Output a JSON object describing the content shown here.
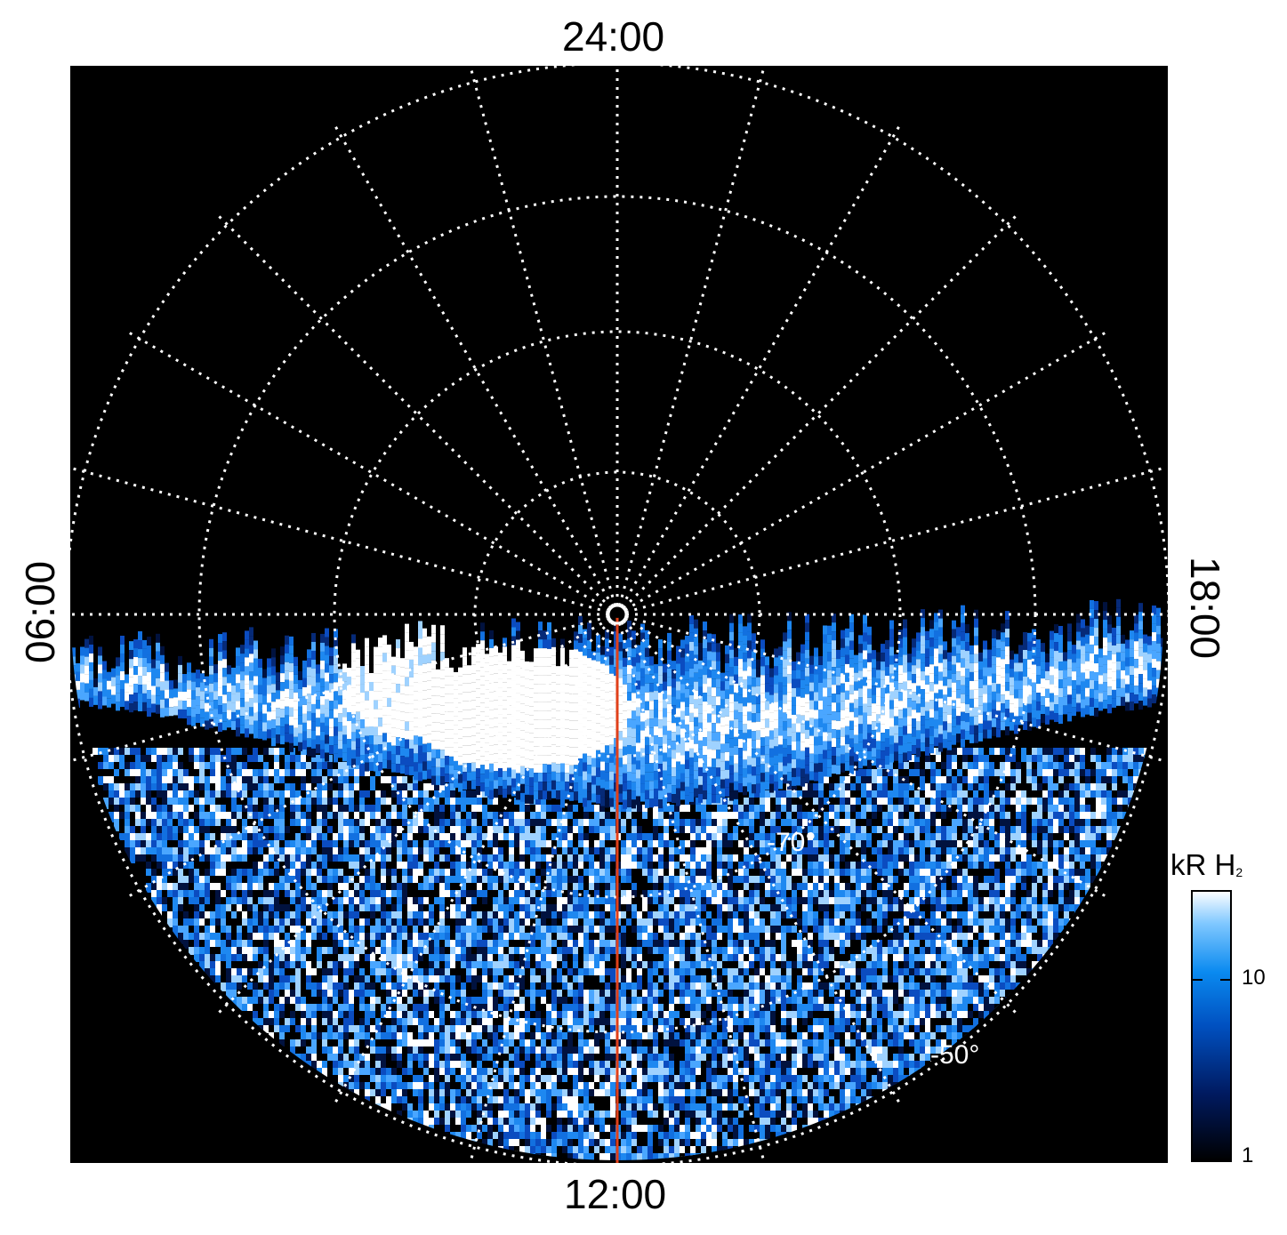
{
  "image": {
    "local_time_labels": {
      "top": "24:00",
      "bottom": "12:00",
      "left": "06:00",
      "right": "18:00"
    },
    "latitude_labels": {
      "inner": "-70°",
      "outer": "-50°"
    },
    "colorbar": {
      "title_main": "kR H",
      "title_sub": "2",
      "tick_labels": [
        "10",
        "1"
      ],
      "color_low": "#000000",
      "color_mid": "#0a7be8",
      "color_high": "#ffffff"
    },
    "colors": {
      "background": "#000000",
      "grid": "#ffffff",
      "meridian_line": "#e0401a",
      "aurora_blue": "#1e88f0",
      "aurora_dark": "#062a78"
    },
    "projection": "polar, pole at center, 12:00 toward bottom"
  }
}
